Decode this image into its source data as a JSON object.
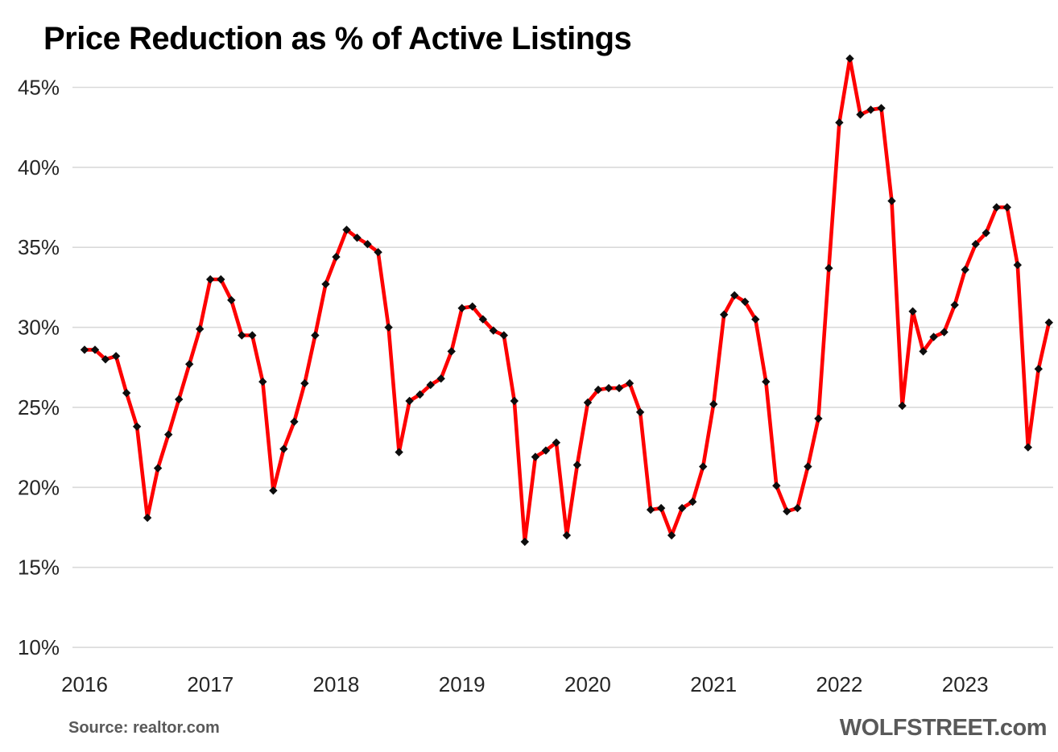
{
  "header": {
    "title": "Price Reduction as % of Active Listings"
  },
  "footer": {
    "source": "Source: realtor.com",
    "site": "WOLFSTREET.com"
  },
  "colors": {
    "line": "#fe0000",
    "marker": "#0d0d0d",
    "gridline": "#d9d9d9",
    "axis_text": "#262626",
    "footer_text": "#595959",
    "background": "#ffffff"
  },
  "chart_data": {
    "type": "line",
    "title": "Price Reduction as % of Active Listings",
    "frequency": "monthly",
    "grid": "horizontal-only",
    "legend": "none",
    "ylabel": "",
    "xlabel": "",
    "ylim": [
      10,
      45
    ],
    "y_ticks": [
      45,
      40,
      35,
      30,
      25,
      20,
      15,
      10
    ],
    "y_tick_labels": [
      "45%",
      "40%",
      "35%",
      "30%",
      "25%",
      "20%",
      "15%",
      "10%"
    ],
    "x_tick_labels": [
      "2016",
      "2017",
      "2018",
      "2019",
      "2020",
      "2021",
      "2022",
      "2023"
    ],
    "x": [
      "2016-01",
      "2016-02",
      "2016-03",
      "2016-04",
      "2016-05",
      "2016-06",
      "2016-07",
      "2016-08",
      "2016-09",
      "2016-10",
      "2016-11",
      "2016-12",
      "2017-01",
      "2017-02",
      "2017-03",
      "2017-04",
      "2017-05",
      "2017-06",
      "2017-07",
      "2017-08",
      "2017-09",
      "2017-10",
      "2017-11",
      "2017-12",
      "2018-01",
      "2018-02",
      "2018-03",
      "2018-04",
      "2018-05",
      "2018-06",
      "2018-07",
      "2018-08",
      "2018-09",
      "2018-10",
      "2018-11",
      "2018-12",
      "2019-01",
      "2019-02",
      "2019-03",
      "2019-04",
      "2019-05",
      "2019-06",
      "2019-07",
      "2019-08",
      "2019-09",
      "2019-10",
      "2019-11",
      "2019-12",
      "2020-01",
      "2020-02",
      "2020-03",
      "2020-04",
      "2020-05",
      "2020-06",
      "2020-07",
      "2020-08",
      "2020-09",
      "2020-10",
      "2020-11",
      "2020-12",
      "2021-01",
      "2021-02",
      "2021-03",
      "2021-04",
      "2021-05",
      "2021-06",
      "2021-07",
      "2021-08",
      "2021-09",
      "2021-10",
      "2021-11",
      "2021-12",
      "2022-01",
      "2022-02",
      "2022-03",
      "2022-04",
      "2022-05",
      "2022-06",
      "2022-07",
      "2022-08",
      "2022-09",
      "2022-10",
      "2022-11",
      "2022-12",
      "2023-01",
      "2023-02",
      "2023-03",
      "2023-04",
      "2023-05",
      "2023-06",
      "2023-07",
      "2023-08",
      "2023-09"
    ],
    "y": [
      28.6,
      28.6,
      28.0,
      28.2,
      25.9,
      23.8,
      18.1,
      21.2,
      23.3,
      25.5,
      27.7,
      29.9,
      33.0,
      33.0,
      31.7,
      29.5,
      29.5,
      26.6,
      19.8,
      22.4,
      24.1,
      26.5,
      29.5,
      32.7,
      34.4,
      36.1,
      35.6,
      35.2,
      34.7,
      30.0,
      22.2,
      25.4,
      25.8,
      26.4,
      26.8,
      28.5,
      31.2,
      31.3,
      30.5,
      29.8,
      29.5,
      25.4,
      16.6,
      21.9,
      22.3,
      22.8,
      17.0,
      21.4,
      25.3,
      26.1,
      26.2,
      26.2,
      26.5,
      24.7,
      18.6,
      18.7,
      17.0,
      18.7,
      19.1,
      21.3,
      25.2,
      30.8,
      32.0,
      31.6,
      30.5,
      26.6,
      20.1,
      18.5,
      18.7,
      21.3,
      24.3,
      33.7,
      42.8,
      46.8,
      43.3,
      43.6,
      43.7,
      37.9,
      25.1,
      31.0,
      28.5,
      29.4,
      29.7,
      31.4,
      33.6,
      35.2,
      35.9,
      37.5,
      37.5,
      33.9,
      22.5,
      27.4,
      30.3
    ]
  }
}
